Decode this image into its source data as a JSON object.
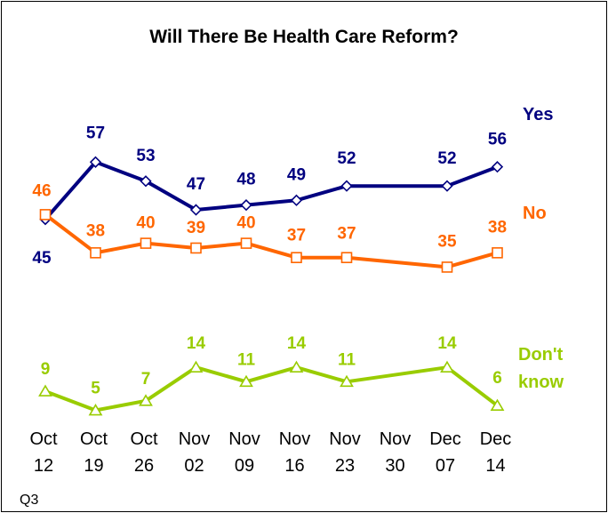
{
  "chart_data": {
    "type": "line",
    "title": "Will There Be Health Care Reform?",
    "footnote": "Q3",
    "categories": [
      [
        "Oct",
        "12"
      ],
      [
        "Oct",
        "19"
      ],
      [
        "Oct",
        "26"
      ],
      [
        "Nov",
        "02"
      ],
      [
        "Nov",
        "09"
      ],
      [
        "Nov",
        "16"
      ],
      [
        "Nov",
        "23"
      ],
      [
        "Nov",
        "30"
      ],
      [
        "Dec",
        "07"
      ],
      [
        "Dec",
        "14"
      ]
    ],
    "series": [
      {
        "key": "yes",
        "name": "Yes",
        "color": "#000080",
        "marker": "diamond",
        "values": [
          45,
          57,
          53,
          47,
          48,
          49,
          52,
          null,
          52,
          56
        ]
      },
      {
        "key": "no",
        "name": "No",
        "color": "#FF6600",
        "marker": "square",
        "values": [
          46,
          38,
          40,
          39,
          40,
          37,
          37,
          null,
          35,
          38
        ]
      },
      {
        "key": "dontknow",
        "name": "Don't know",
        "name_lines": [
          "Don't",
          "know"
        ],
        "color": "#99CC00",
        "marker": "triangle",
        "values": [
          9,
          5,
          7,
          14,
          11,
          14,
          11,
          null,
          14,
          6
        ]
      }
    ],
    "ylim": [
      0,
      70
    ],
    "grid": false,
    "legend": "right-inline"
  }
}
